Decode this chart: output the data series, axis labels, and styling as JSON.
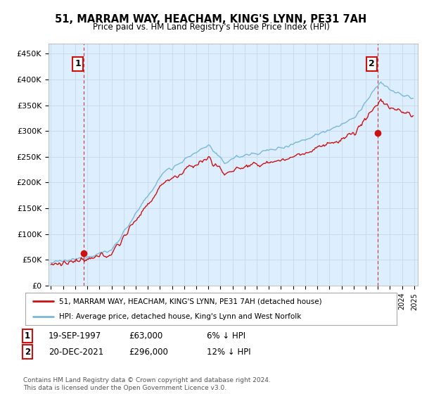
{
  "title": "51, MARRAM WAY, HEACHAM, KING'S LYNN, PE31 7AH",
  "subtitle": "Price paid vs. HM Land Registry's House Price Index (HPI)",
  "legend_line1": "51, MARRAM WAY, HEACHAM, KING'S LYNN, PE31 7AH (detached house)",
  "legend_line2": "HPI: Average price, detached house, King's Lynn and West Norfolk",
  "footer": "Contains HM Land Registry data © Crown copyright and database right 2024.\nThis data is licensed under the Open Government Licence v3.0.",
  "annotation1": {
    "num": "1",
    "date": "19-SEP-1997",
    "price": "£63,000",
    "pct": "6% ↓ HPI"
  },
  "annotation2": {
    "num": "2",
    "date": "20-DEC-2021",
    "price": "£296,000",
    "pct": "12% ↓ HPI"
  },
  "sale1_year": 1997.72,
  "sale1_price": 63000,
  "sale2_year": 2021.97,
  "sale2_price": 296000,
  "ylim": [
    0,
    470000
  ],
  "xlim_start": 1994.8,
  "xlim_end": 2025.3,
  "hpi_color": "#7ab8d9",
  "price_color": "#cc1111",
  "vline_color": "#cc1111",
  "grid_color": "#c8d8e8",
  "bg_color": "#ddeeff",
  "background_color": "#ffffff"
}
